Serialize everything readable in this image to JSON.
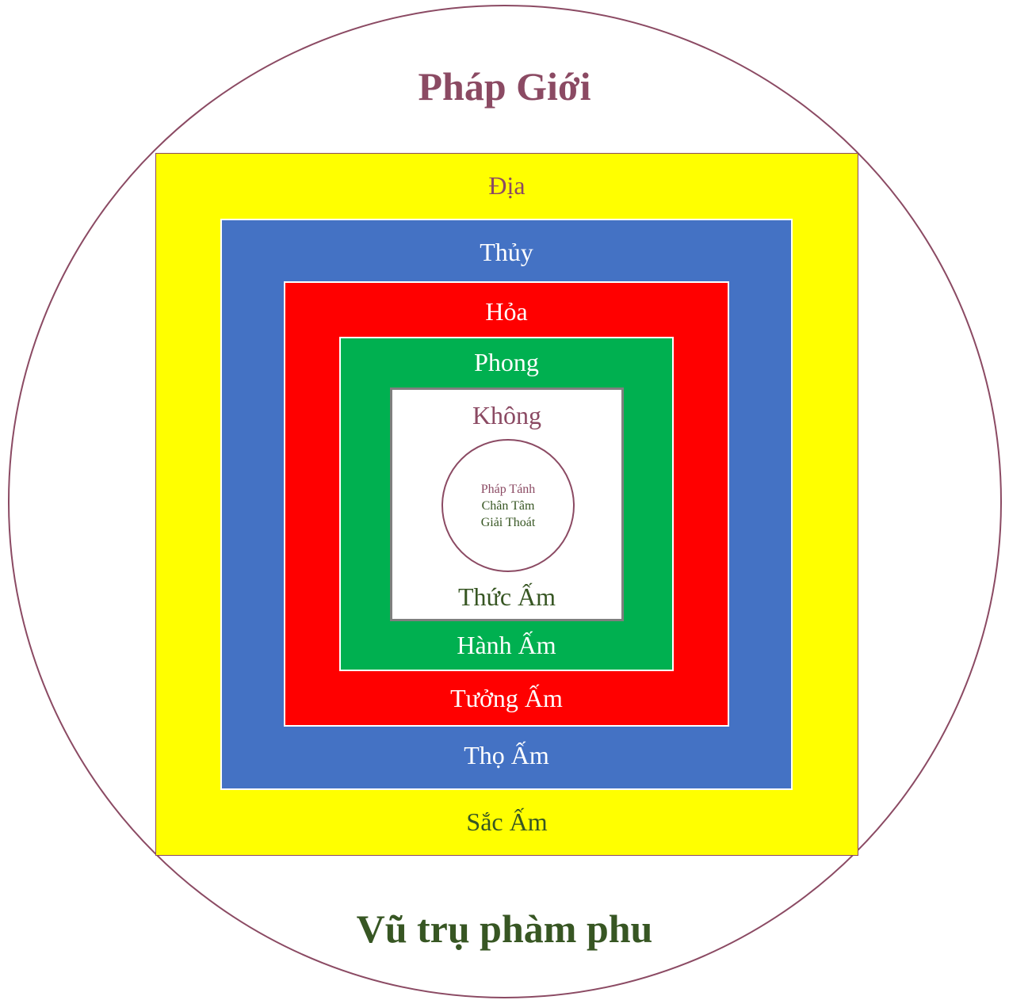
{
  "diagram": {
    "title_top": "Pháp Giới",
    "title_bottom": "Vũ trụ phàm phu",
    "layers": [
      {
        "element": "Địa",
        "aggregate": "Sắc Ấm",
        "fill": "#ffff00"
      },
      {
        "element": "Thủy",
        "aggregate": "Thọ Ấm",
        "fill": "#4472c4"
      },
      {
        "element": "Hỏa",
        "aggregate": "Tưởng Ấm",
        "fill": "#ff0000"
      },
      {
        "element": "Phong",
        "aggregate": "Hành Ấm",
        "fill": "#00b050"
      },
      {
        "element": "Không",
        "aggregate": "Thức Ấm",
        "fill": "#ffffff"
      }
    ],
    "core": {
      "line1": "Pháp Tánh",
      "line2": "Chân Tâm",
      "line3": "Giải Thoát"
    },
    "colors": {
      "mauve": "#8b4a63",
      "dark_green": "#375623",
      "white": "#ffffff",
      "grey_border": "#7f7f7f"
    }
  }
}
